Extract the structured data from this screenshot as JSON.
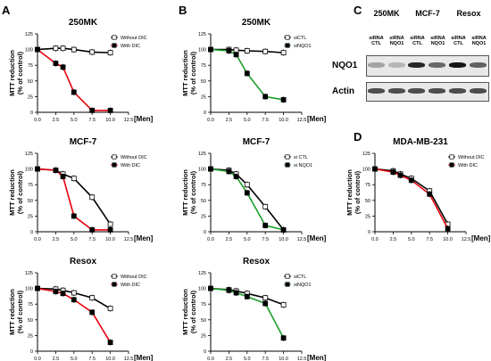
{
  "panel_labels": {
    "A": "A",
    "B": "B",
    "C": "C",
    "D": "D"
  },
  "colors": {
    "control": "#000000",
    "treated": "#e8000b",
    "knockdown": "#1b9e2a"
  },
  "chart_data": [
    {
      "id": "A1",
      "type": "line",
      "title": "250MK",
      "xlabel": "[Men]",
      "ylabel": "MTT reduction\n(% of control)",
      "xlim": [
        0,
        12.5
      ],
      "ylim": [
        0,
        125
      ],
      "xticks": [
        "0.0",
        "2.5",
        "5.0",
        "7.5",
        "10.0",
        "12.5"
      ],
      "yticks": [
        "0",
        "25",
        "50",
        "75",
        "100",
        "125"
      ],
      "legend": "top-right",
      "series": [
        {
          "name": "Without DIC",
          "marker": "open-square",
          "color": "#000000",
          "x": [
            0,
            2.5,
            3.5,
            5,
            7.5,
            10
          ],
          "y": [
            100,
            102,
            102,
            100,
            96,
            95
          ]
        },
        {
          "name": "With DIC",
          "marker": "filled-square",
          "color": "#e8000b",
          "x": [
            0,
            2.5,
            3.5,
            5,
            7.5,
            10
          ],
          "y": [
            100,
            78,
            72,
            32,
            3,
            3
          ]
        }
      ]
    },
    {
      "id": "B1",
      "type": "line",
      "title": "250MK",
      "xlabel": "[Men]",
      "ylabel": "MTT reduction\n(% of control)",
      "xlim": [
        0,
        12.5
      ],
      "ylim": [
        0,
        125
      ],
      "xticks": [
        "0.0",
        "2.5",
        "5.0",
        "7.5",
        "10.0",
        "12.5"
      ],
      "yticks": [
        "0",
        "25",
        "50",
        "75",
        "100",
        "125"
      ],
      "legend": "top-right",
      "series": [
        {
          "name": "siCTL",
          "marker": "open-square",
          "color": "#000000",
          "x": [
            0,
            2.5,
            3.5,
            5,
            7.5,
            10
          ],
          "y": [
            100,
            100,
            99,
            98,
            97,
            95
          ]
        },
        {
          "name": "siNQO1",
          "marker": "filled-square",
          "color": "#1b9e2a",
          "x": [
            0,
            2.5,
            3.5,
            5,
            7.5,
            10
          ],
          "y": [
            100,
            98,
            92,
            62,
            25,
            20
          ]
        }
      ]
    },
    {
      "id": "A2",
      "type": "line",
      "title": "MCF-7",
      "xlabel": "[Men]",
      "ylabel": "MTT reduction\n(% of control)",
      "xlim": [
        0,
        12.5
      ],
      "ylim": [
        0,
        125
      ],
      "xticks": [
        "0.0",
        "2.5",
        "5.0",
        "7.5",
        "10.0",
        "12.5"
      ],
      "yticks": [
        "0",
        "25",
        "50",
        "75",
        "100",
        "125"
      ],
      "legend": "top-right",
      "series": [
        {
          "name": "Without DIC",
          "marker": "open-square",
          "color": "#000000",
          "x": [
            0,
            2.5,
            3.5,
            5,
            7.5,
            10
          ],
          "y": [
            100,
            98,
            92,
            85,
            55,
            12
          ]
        },
        {
          "name": "With DIC",
          "marker": "filled-square",
          "color": "#e8000b",
          "x": [
            0,
            2.5,
            3.5,
            5,
            7.5,
            10
          ],
          "y": [
            100,
            98,
            88,
            25,
            3,
            3
          ]
        }
      ]
    },
    {
      "id": "B2",
      "type": "line",
      "title": "MCF-7",
      "xlabel": "[Men]",
      "ylabel": "MTT reduction\n(% of control)",
      "xlim": [
        0,
        12.5
      ],
      "ylim": [
        0,
        125
      ],
      "xticks": [
        "0.0",
        "2.5",
        "5.0",
        "7.5",
        "10.0",
        "12.5"
      ],
      "yticks": [
        "0",
        "25",
        "50",
        "75",
        "100",
        "125"
      ],
      "legend": "top-right",
      "series": [
        {
          "name": "si CTL",
          "marker": "open-square",
          "color": "#000000",
          "x": [
            0,
            2.5,
            3.5,
            5,
            7.5,
            10
          ],
          "y": [
            100,
            98,
            92,
            75,
            40,
            3
          ]
        },
        {
          "name": "si NQO1",
          "marker": "filled-square",
          "color": "#1b9e2a",
          "x": [
            0,
            2.5,
            3.5,
            5,
            7.5,
            10
          ],
          "y": [
            100,
            96,
            88,
            62,
            10,
            3
          ]
        }
      ]
    },
    {
      "id": "A3",
      "type": "line",
      "title": "Resox",
      "xlabel": "[Men]",
      "ylabel": "MTT reduction\n(% of control)",
      "xlim": [
        0,
        12.5
      ],
      "ylim": [
        0,
        125
      ],
      "xticks": [
        "0.0",
        "2.5",
        "5.0",
        "7.5",
        "10.0",
        "12.5"
      ],
      "yticks": [
        "0",
        "25",
        "50",
        "75",
        "100",
        "125"
      ],
      "legend": "top-right",
      "series": [
        {
          "name": "Without DIC",
          "marker": "open-square",
          "color": "#000000",
          "x": [
            0,
            2.5,
            3.5,
            5,
            7.5,
            10
          ],
          "y": [
            100,
            99,
            97,
            93,
            85,
            68
          ]
        },
        {
          "name": "With DIC",
          "marker": "filled-square",
          "color": "#e8000b",
          "x": [
            0,
            2.5,
            3.5,
            5,
            7.5,
            10
          ],
          "y": [
            100,
            95,
            92,
            82,
            62,
            14
          ]
        }
      ]
    },
    {
      "id": "B3",
      "type": "line",
      "title": "Resox",
      "xlabel": "[Men]",
      "ylabel": "MTT reduction\n(% of control)",
      "xlim": [
        0,
        12.5
      ],
      "ylim": [
        0,
        125
      ],
      "xticks": [
        "0.0",
        "2.5",
        "5.0",
        "7.5",
        "10.0",
        "12.5"
      ],
      "yticks": [
        "0",
        "25",
        "50",
        "75",
        "100",
        "125"
      ],
      "legend": "top-right",
      "series": [
        {
          "name": "siCTL",
          "marker": "open-square",
          "color": "#000000",
          "x": [
            0,
            2.5,
            3.5,
            5,
            7.5,
            10
          ],
          "y": [
            100,
            98,
            96,
            92,
            85,
            74
          ]
        },
        {
          "name": "siNQO1",
          "marker": "filled-square",
          "color": "#1b9e2a",
          "x": [
            0,
            2.5,
            3.5,
            5,
            7.5,
            10
          ],
          "y": [
            100,
            97,
            93,
            87,
            76,
            21
          ]
        }
      ]
    },
    {
      "id": "D",
      "type": "line",
      "title": "MDA-MB-231",
      "xlabel": "[Men]",
      "ylabel": "MTT reduction\n(% of control)",
      "xlim": [
        0,
        12.5
      ],
      "ylim": [
        0,
        125
      ],
      "xticks": [
        "0.0",
        "2.5",
        "5.0",
        "7.5",
        "10.0",
        "12.5"
      ],
      "yticks": [
        "0",
        "25",
        "50",
        "75",
        "100",
        "125"
      ],
      "legend": "top-right",
      "series": [
        {
          "name": "Without DIC",
          "marker": "open-square",
          "color": "#000000",
          "x": [
            0,
            2.5,
            3.5,
            5,
            7.5,
            10
          ],
          "y": [
            100,
            97,
            92,
            85,
            65,
            12
          ]
        },
        {
          "name": "With DIC",
          "marker": "filled-square",
          "color": "#e8000b",
          "x": [
            0,
            2.5,
            3.5,
            5,
            7.5,
            10
          ],
          "y": [
            100,
            95,
            90,
            82,
            60,
            5
          ]
        }
      ]
    }
  ],
  "western_blot": {
    "groups": [
      "250MK",
      "MCF-7",
      "Resox"
    ],
    "lanes": [
      {
        "line1": "siRNA",
        "line2": "CTL"
      },
      {
        "line1": "siRNA",
        "line2": "NQO1"
      },
      {
        "line1": "siRNA",
        "line2": "CTL"
      },
      {
        "line1": "siRNA",
        "line2": "NQO1"
      },
      {
        "line1": "siRNA",
        "line2": "CTL"
      },
      {
        "line1": "siRNA",
        "line2": "NQO1"
      }
    ],
    "rows": [
      {
        "label": "NQO1",
        "intensity": [
          0.25,
          0.15,
          0.9,
          0.55,
          1.0,
          0.6
        ]
      },
      {
        "label": "Actin",
        "intensity": [
          0.7,
          0.7,
          0.7,
          0.7,
          0.7,
          0.7
        ]
      }
    ]
  }
}
